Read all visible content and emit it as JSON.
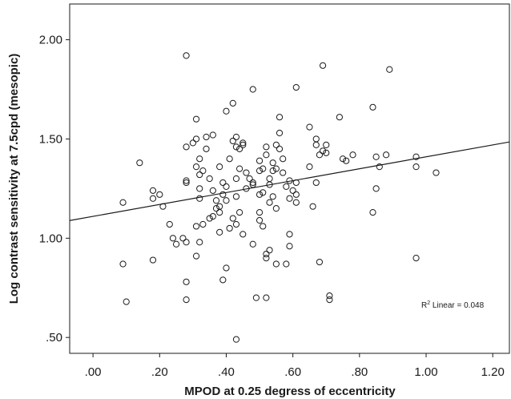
{
  "chart_data": {
    "type": "scatter",
    "title": "",
    "xlabel": "MPOD at 0.25 degress of eccentricity",
    "ylabel": "Log contrast sensitivity at 7.5cpd (mesopic)",
    "xlim": [
      -0.07,
      1.25
    ],
    "ylim": [
      0.42,
      2.18
    ],
    "xticks": [
      0.0,
      0.2,
      0.4,
      0.6,
      0.8,
      1.0,
      1.2
    ],
    "xtick_labels": [
      ".00",
      ".20",
      ".40",
      ".60",
      ".80",
      "1.00",
      "1.20"
    ],
    "yticks": [
      0.5,
      1.0,
      1.5,
      2.0
    ],
    "ytick_labels": [
      ".50",
      "1.00",
      "1.50",
      "2.00"
    ],
    "grid": false,
    "legend": "none",
    "annotation": {
      "prefix": "R",
      "superscript": "2",
      "suffix": " Linear = 0.048"
    },
    "fit_line": {
      "slope": 0.3,
      "intercept": 1.11
    },
    "points": [
      [
        0.09,
        0.87
      ],
      [
        0.1,
        0.68
      ],
      [
        0.09,
        1.18
      ],
      [
        0.14,
        1.38
      ],
      [
        0.18,
        1.24
      ],
      [
        0.18,
        1.2
      ],
      [
        0.18,
        0.89
      ],
      [
        0.2,
        1.22
      ],
      [
        0.21,
        1.16
      ],
      [
        0.23,
        1.07
      ],
      [
        0.24,
        1.0
      ],
      [
        0.25,
        0.97
      ],
      [
        0.27,
        1.0
      ],
      [
        0.28,
        1.92
      ],
      [
        0.28,
        1.46
      ],
      [
        0.28,
        1.29
      ],
      [
        0.28,
        1.28
      ],
      [
        0.28,
        0.98
      ],
      [
        0.28,
        0.78
      ],
      [
        0.28,
        0.69
      ],
      [
        0.3,
        1.48
      ],
      [
        0.31,
        1.6
      ],
      [
        0.31,
        1.5
      ],
      [
        0.31,
        1.36
      ],
      [
        0.31,
        1.06
      ],
      [
        0.31,
        0.91
      ],
      [
        0.32,
        1.4
      ],
      [
        0.32,
        1.32
      ],
      [
        0.32,
        1.25
      ],
      [
        0.32,
        1.2
      ],
      [
        0.32,
        0.98
      ],
      [
        0.33,
        1.34
      ],
      [
        0.33,
        1.07
      ],
      [
        0.34,
        1.51
      ],
      [
        0.34,
        1.45
      ],
      [
        0.35,
        1.3
      ],
      [
        0.35,
        1.1
      ],
      [
        0.36,
        1.52
      ],
      [
        0.36,
        1.24
      ],
      [
        0.36,
        1.11
      ],
      [
        0.37,
        1.19
      ],
      [
        0.37,
        1.15
      ],
      [
        0.38,
        1.36
      ],
      [
        0.38,
        1.16
      ],
      [
        0.38,
        1.13
      ],
      [
        0.38,
        1.03
      ],
      [
        0.39,
        1.28
      ],
      [
        0.39,
        1.22
      ],
      [
        0.39,
        0.79
      ],
      [
        0.4,
        1.64
      ],
      [
        0.4,
        1.26
      ],
      [
        0.4,
        1.19
      ],
      [
        0.4,
        0.85
      ],
      [
        0.41,
        1.4
      ],
      [
        0.41,
        1.05
      ],
      [
        0.42,
        1.68
      ],
      [
        0.42,
        1.49
      ],
      [
        0.42,
        1.1
      ],
      [
        0.43,
        1.51
      ],
      [
        0.43,
        1.46
      ],
      [
        0.43,
        1.3
      ],
      [
        0.43,
        1.21
      ],
      [
        0.43,
        1.07
      ],
      [
        0.43,
        0.49
      ],
      [
        0.44,
        1.45
      ],
      [
        0.44,
        1.35
      ],
      [
        0.44,
        1.13
      ],
      [
        0.45,
        1.48
      ],
      [
        0.45,
        1.47
      ],
      [
        0.45,
        1.02
      ],
      [
        0.46,
        1.33
      ],
      [
        0.46,
        1.25
      ],
      [
        0.47,
        1.3
      ],
      [
        0.48,
        1.75
      ],
      [
        0.48,
        1.28
      ],
      [
        0.48,
        1.27
      ],
      [
        0.48,
        0.97
      ],
      [
        0.49,
        0.7
      ],
      [
        0.5,
        1.39
      ],
      [
        0.5,
        1.34
      ],
      [
        0.5,
        1.22
      ],
      [
        0.5,
        1.13
      ],
      [
        0.5,
        1.09
      ],
      [
        0.51,
        1.35
      ],
      [
        0.51,
        1.23
      ],
      [
        0.51,
        1.06
      ],
      [
        0.52,
        1.46
      ],
      [
        0.52,
        1.42
      ],
      [
        0.52,
        0.92
      ],
      [
        0.52,
        0.9
      ],
      [
        0.52,
        0.7
      ],
      [
        0.53,
        1.3
      ],
      [
        0.53,
        1.27
      ],
      [
        0.53,
        1.18
      ],
      [
        0.53,
        0.94
      ],
      [
        0.54,
        1.38
      ],
      [
        0.54,
        1.34
      ],
      [
        0.54,
        1.21
      ],
      [
        0.55,
        1.47
      ],
      [
        0.55,
        1.35
      ],
      [
        0.55,
        1.15
      ],
      [
        0.55,
        0.87
      ],
      [
        0.56,
        1.61
      ],
      [
        0.56,
        1.53
      ],
      [
        0.56,
        1.45
      ],
      [
        0.57,
        1.4
      ],
      [
        0.57,
        1.33
      ],
      [
        0.58,
        1.26
      ],
      [
        0.58,
        0.87
      ],
      [
        0.59,
        1.29
      ],
      [
        0.59,
        1.2
      ],
      [
        0.59,
        1.02
      ],
      [
        0.59,
        0.96
      ],
      [
        0.6,
        1.24
      ],
      [
        0.61,
        1.76
      ],
      [
        0.61,
        1.28
      ],
      [
        0.61,
        1.22
      ],
      [
        0.61,
        1.18
      ],
      [
        0.65,
        1.56
      ],
      [
        0.65,
        1.36
      ],
      [
        0.66,
        1.16
      ],
      [
        0.67,
        1.5
      ],
      [
        0.67,
        1.47
      ],
      [
        0.67,
        1.28
      ],
      [
        0.68,
        1.42
      ],
      [
        0.68,
        0.88
      ],
      [
        0.69,
        1.87
      ],
      [
        0.69,
        1.44
      ],
      [
        0.7,
        1.47
      ],
      [
        0.7,
        1.43
      ],
      [
        0.71,
        0.71
      ],
      [
        0.71,
        0.69
      ],
      [
        0.74,
        1.61
      ],
      [
        0.75,
        1.4
      ],
      [
        0.76,
        1.39
      ],
      [
        0.78,
        1.42
      ],
      [
        0.84,
        1.66
      ],
      [
        0.84,
        1.13
      ],
      [
        0.85,
        1.41
      ],
      [
        0.85,
        1.25
      ],
      [
        0.86,
        1.36
      ],
      [
        0.88,
        1.42
      ],
      [
        0.89,
        1.85
      ],
      [
        0.97,
        1.41
      ],
      [
        0.97,
        1.36
      ],
      [
        0.97,
        0.9
      ],
      [
        1.03,
        1.33
      ]
    ]
  }
}
